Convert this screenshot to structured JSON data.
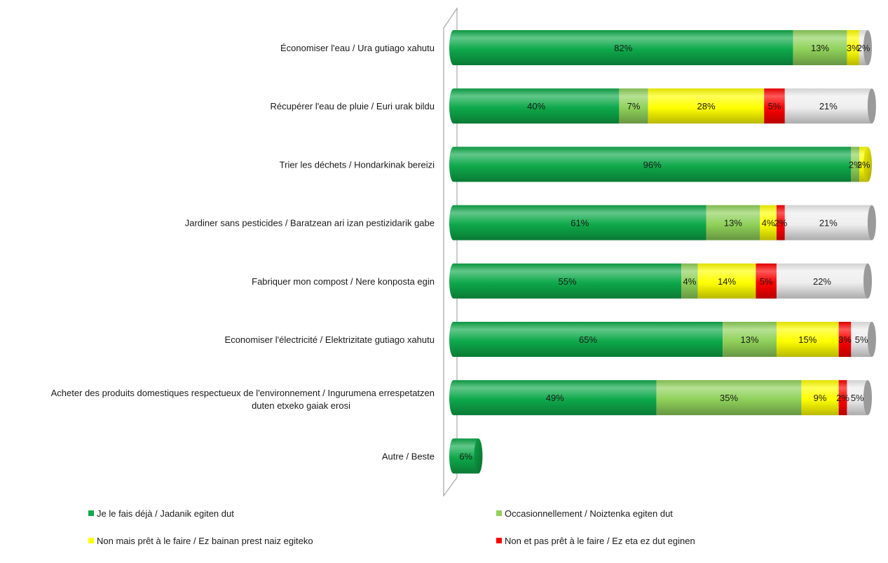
{
  "chart_data": {
    "type": "bar",
    "orientation": "horizontal",
    "stacked": true,
    "percent_stacked": true,
    "style": "3d-cylinder",
    "title": "",
    "xlabel": "",
    "ylabel": "",
    "xlim": [
      0,
      100
    ],
    "grid": false,
    "legend_position": "bottom",
    "categories": [
      "Économiser l'eau / Ura gutiago xahutu",
      "Récupérer l'eau de pluie / Euri urak bildu",
      "Trier les déchets  / Hondarkinak bereizi",
      "Jardiner sans pesticides / Baratzean ari izan pestizidarik gabe",
      "Fabriquer mon compost / Nere konposta egin",
      "Economiser l'électricité / Elektrizitate gutiago xahutu",
      "Acheter des produits domestiques respectueux de l'environnement / Ingurumena errespetatzen duten etxeko gaiak erosi",
      "Autre / Beste"
    ],
    "category_lines": [
      [
        "Économiser l'eau / Ura gutiago xahutu"
      ],
      [
        "Récupérer l'eau de pluie / Euri urak bildu"
      ],
      [
        "Trier les déchets  / Hondarkinak bereizi"
      ],
      [
        "Jardiner sans pesticides / Baratzean ari izan pestizidarik gabe"
      ],
      [
        "Fabriquer mon compost / Nere konposta egin"
      ],
      [
        "Economiser l'électricité / Elektrizitate gutiago xahutu"
      ],
      [
        "Acheter des produits domestiques respectueux de l'environnement / Ingurumena errespetatzen",
        "duten etxeko gaiak erosi"
      ],
      [
        "Autre / Beste"
      ]
    ],
    "series": [
      {
        "name": "Je le fais déjà / Jadanik egiten dut",
        "color": "#0ea94a",
        "values": [
          82,
          40,
          96,
          61,
          55,
          65,
          49,
          6
        ]
      },
      {
        "name": "Occasionnellement / Noiztenka egiten dut",
        "color": "#8fd15a",
        "values": [
          13,
          7,
          2,
          13,
          4,
          13,
          35,
          0
        ]
      },
      {
        "name": "Non mais prêt à le faire / Ez bainan prest naiz egiteko",
        "color": "#ffff00",
        "values": [
          3,
          28,
          2,
          4,
          14,
          15,
          9,
          0
        ]
      },
      {
        "name": "Non et pas prêt à le faire / Ez eta ez dut eginen",
        "color": "#ff0000",
        "values": [
          0,
          5,
          0,
          2,
          5,
          3,
          2,
          0
        ]
      },
      {
        "name": "",
        "color": "#eeeeee",
        "values": [
          2,
          21,
          0,
          21,
          22,
          5,
          5,
          0
        ]
      }
    ]
  }
}
